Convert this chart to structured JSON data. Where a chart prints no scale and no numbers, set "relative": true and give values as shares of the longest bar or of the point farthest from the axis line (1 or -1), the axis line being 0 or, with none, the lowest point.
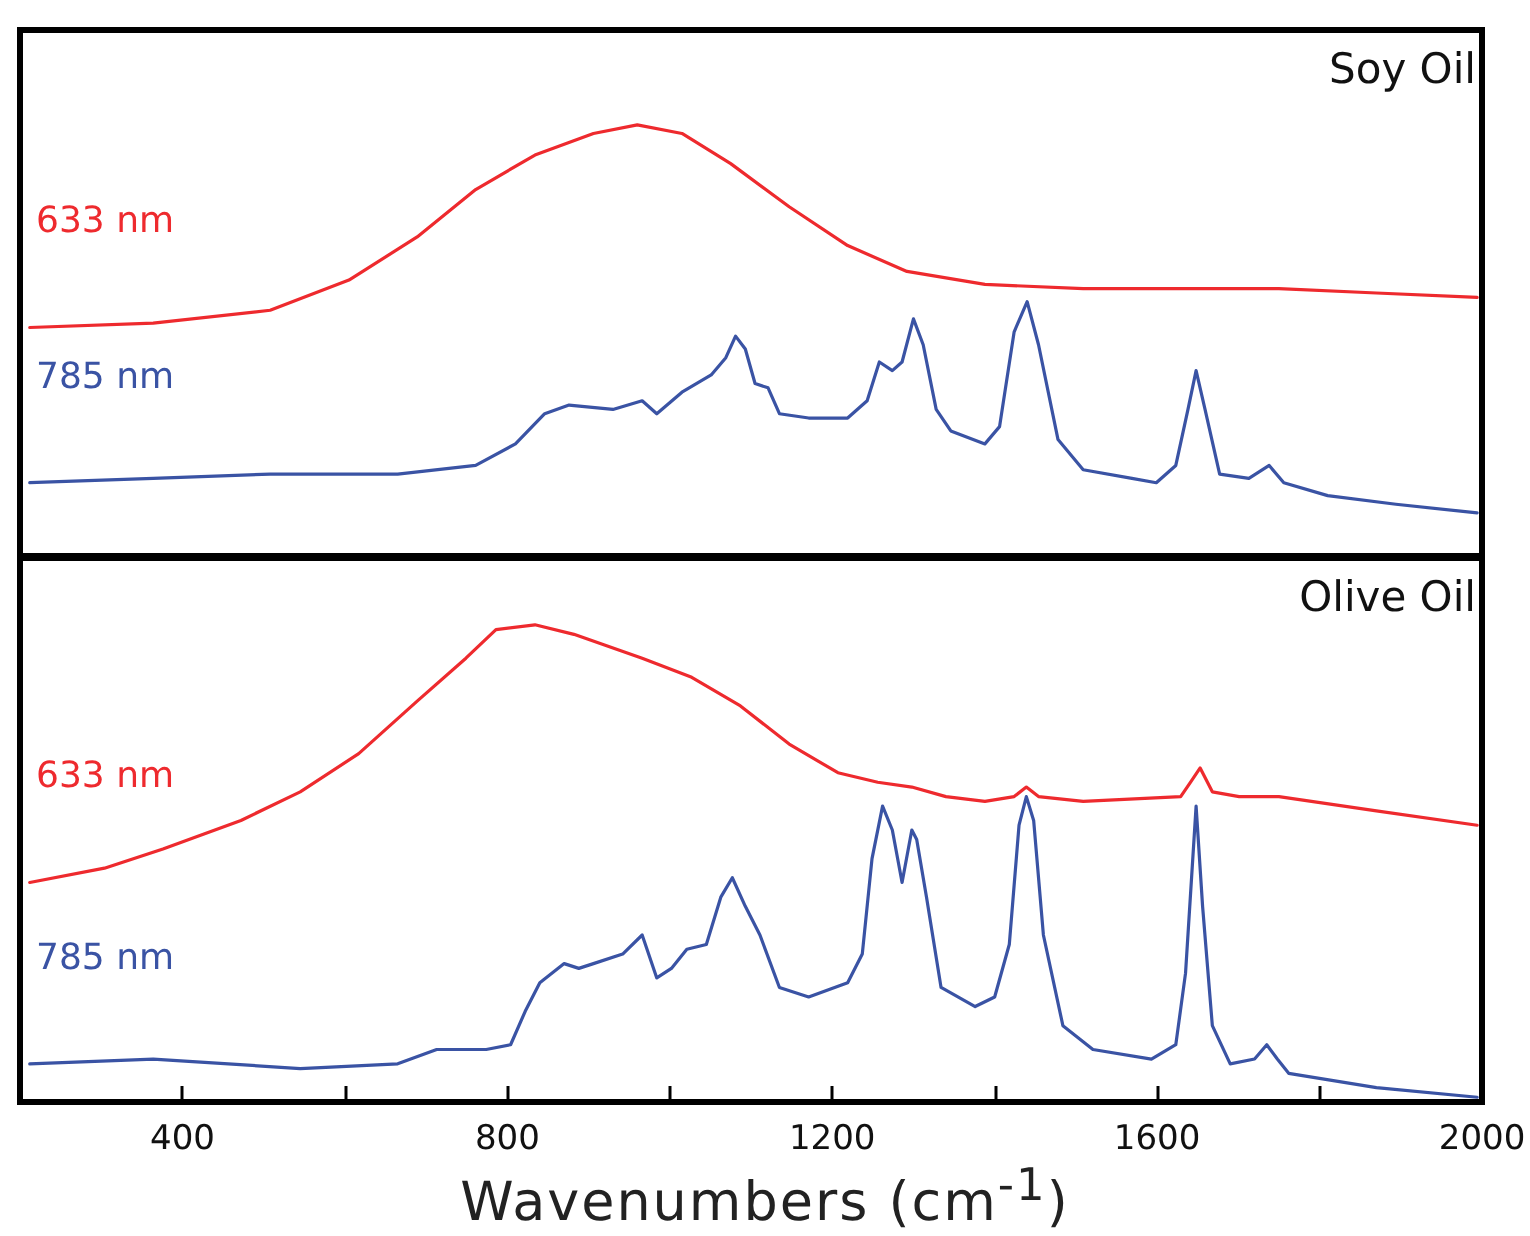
{
  "chart_data": [
    {
      "type": "line",
      "title": "Soy Oil",
      "relative": true,
      "xlim": [
        200,
        2000
      ],
      "tick_labels": false,
      "legend": false,
      "grid": false,
      "marker": "none",
      "line_style": "solid",
      "series": [
        {
          "name": "633 nm",
          "color": "#ee2a2e",
          "x": [
            212,
            364,
            508,
            605,
            689,
            761,
            834,
            906,
            960,
            1015,
            1075,
            1147,
            1219,
            1292,
            1388,
            1509,
            1629,
            1750,
            1870,
            1994
          ],
          "values": [
            0.53,
            0.54,
            0.57,
            0.64,
            0.74,
            0.85,
            0.93,
            0.98,
            1.0,
            0.98,
            0.91,
            0.81,
            0.72,
            0.66,
            0.63,
            0.62,
            0.62,
            0.62,
            0.61,
            0.6
          ]
        },
        {
          "name": "785 nm",
          "color": "#3a53a4",
          "x": [
            212,
            364,
            508,
            665,
            761,
            810,
            846,
            876,
            930,
            966,
            984,
            1015,
            1051,
            1069,
            1081,
            1093,
            1105,
            1121,
            1135,
            1171,
            1219,
            1243,
            1258,
            1274,
            1286,
            1300,
            1312,
            1328,
            1346,
            1388,
            1406,
            1424,
            1440,
            1454,
            1478,
            1509,
            1569,
            1599,
            1623,
            1638,
            1648,
            1659,
            1677,
            1713,
            1738,
            1756,
            1810,
            1894,
            1994
          ],
          "values": [
            0.17,
            0.18,
            0.19,
            0.19,
            0.21,
            0.26,
            0.33,
            0.35,
            0.34,
            0.36,
            0.33,
            0.38,
            0.42,
            0.46,
            0.51,
            0.48,
            0.4,
            0.39,
            0.33,
            0.32,
            0.32,
            0.36,
            0.45,
            0.43,
            0.45,
            0.55,
            0.49,
            0.34,
            0.29,
            0.26,
            0.3,
            0.52,
            0.59,
            0.49,
            0.27,
            0.2,
            0.18,
            0.17,
            0.21,
            0.34,
            0.43,
            0.34,
            0.19,
            0.18,
            0.21,
            0.17,
            0.14,
            0.12,
            0.1
          ]
        }
      ]
    },
    {
      "type": "line",
      "title": "Olive Oil",
      "relative": true,
      "xlim": [
        200,
        2000
      ],
      "xlabel": "Wavenumbers (cm$^{-1}$)",
      "xticks": [
        400,
        {
          "value": 600,
          "label": null
        },
        800,
        {
          "value": 1000,
          "label": null
        },
        1200,
        {
          "value": 1400,
          "label": null
        },
        1600,
        {
          "value": 1800,
          "label": null
        },
        2000
      ],
      "tick_labels": "x",
      "legend": false,
      "grid": false,
      "marker": "none",
      "line_style": "solid",
      "series": [
        {
          "name": "633 nm",
          "color": "#ee2a2e",
          "x": [
            212,
            304,
            376,
            472,
            545,
            617,
            689,
            749,
            786,
            834,
            882,
            966,
            1027,
            1087,
            1147,
            1207,
            1256,
            1298,
            1340,
            1388,
            1424,
            1439,
            1454,
            1509,
            1629,
            1641,
            1653,
            1668,
            1701,
            1750,
            1870,
            1994
          ],
          "values": [
            0.46,
            0.49,
            0.53,
            0.59,
            0.65,
            0.73,
            0.84,
            0.93,
            0.99,
            1.0,
            0.98,
            0.93,
            0.89,
            0.83,
            0.75,
            0.69,
            0.67,
            0.66,
            0.64,
            0.63,
            0.64,
            0.66,
            0.64,
            0.63,
            0.64,
            0.67,
            0.7,
            0.65,
            0.64,
            0.64,
            0.61,
            0.58
          ]
        },
        {
          "name": "785 nm",
          "color": "#3a53a4",
          "x": [
            212,
            364,
            545,
            665,
            713,
            774,
            804,
            822,
            840,
            870,
            888,
            906,
            942,
            966,
            984,
            1002,
            1021,
            1045,
            1063,
            1077,
            1093,
            1111,
            1135,
            1171,
            1219,
            1237,
            1249,
            1262,
            1274,
            1286,
            1298,
            1304,
            1316,
            1334,
            1376,
            1400,
            1418,
            1430,
            1439,
            1448,
            1460,
            1484,
            1521,
            1593,
            1623,
            1635,
            1648,
            1656,
            1668,
            1690,
            1720,
            1735,
            1748,
            1762,
            1870,
            1994
          ],
          "values": [
            0.08,
            0.09,
            0.07,
            0.08,
            0.11,
            0.11,
            0.12,
            0.19,
            0.25,
            0.29,
            0.28,
            0.29,
            0.31,
            0.35,
            0.26,
            0.28,
            0.32,
            0.33,
            0.43,
            0.47,
            0.41,
            0.35,
            0.24,
            0.22,
            0.25,
            0.31,
            0.51,
            0.62,
            0.57,
            0.46,
            0.57,
            0.55,
            0.43,
            0.24,
            0.2,
            0.22,
            0.33,
            0.58,
            0.64,
            0.59,
            0.35,
            0.16,
            0.11,
            0.09,
            0.12,
            0.27,
            0.62,
            0.41,
            0.16,
            0.08,
            0.09,
            0.12,
            0.09,
            0.06,
            0.03,
            0.01
          ]
        }
      ]
    }
  ]
}
